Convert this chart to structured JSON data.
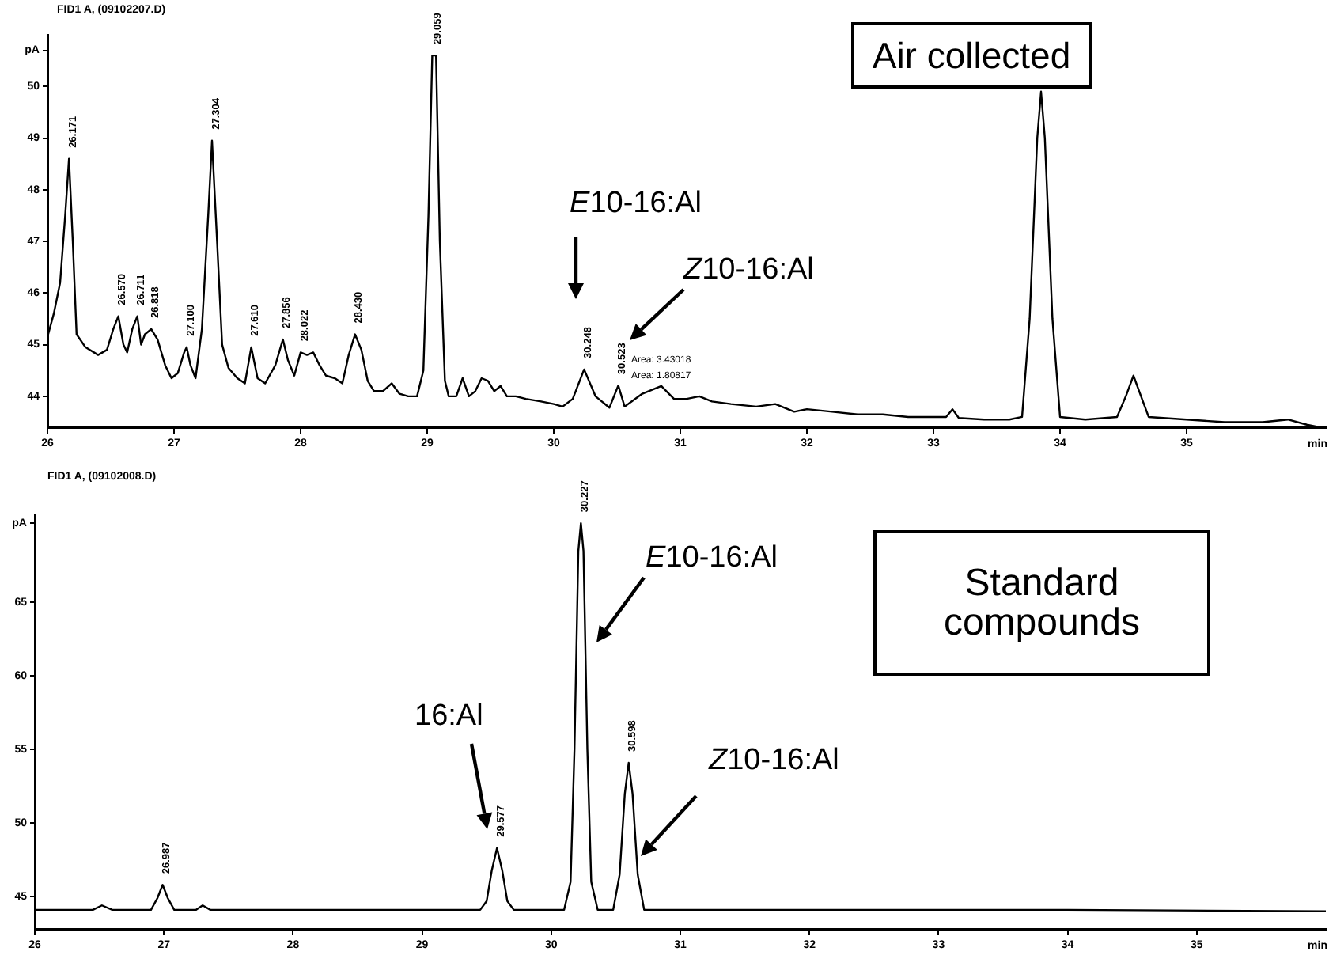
{
  "chart_data": [
    {
      "type": "line",
      "subtitle": "FID1 A, (09102207.D)",
      "xlabel": "min",
      "marker": "none",
      "x": [
        26.0,
        26.05,
        26.1,
        26.14,
        26.17,
        26.2,
        26.23,
        26.3,
        26.4,
        26.47,
        26.52,
        26.56,
        26.6,
        26.63,
        26.67,
        26.71,
        26.74,
        26.77,
        26.82,
        26.87,
        26.93,
        26.98,
        27.03,
        27.08,
        27.1,
        27.13,
        27.17,
        27.22,
        27.27,
        27.3,
        27.34,
        27.38,
        27.43,
        27.5,
        27.56,
        27.61,
        27.66,
        27.72,
        27.8,
        27.86,
        27.9,
        27.95,
        28.0,
        28.05,
        28.1,
        28.15,
        28.2,
        28.27,
        28.33,
        28.38,
        28.43,
        28.48,
        28.53,
        28.58,
        28.65,
        28.72,
        28.78,
        28.85,
        28.92,
        28.97,
        29.01,
        29.04,
        29.07,
        29.1,
        29.14,
        29.17,
        29.23,
        29.28,
        29.33,
        29.38,
        29.43,
        29.48,
        29.53,
        29.58,
        29.63,
        29.7,
        29.78,
        29.9,
        30.0,
        30.07,
        30.15,
        30.24,
        30.33,
        30.44,
        30.51,
        30.56,
        30.7,
        30.85,
        30.95,
        31.05,
        31.15,
        31.25,
        31.4,
        31.6,
        31.75,
        31.9,
        32.0,
        32.2,
        32.4,
        32.6,
        32.8,
        33.0,
        33.1,
        33.15,
        33.2,
        33.4,
        33.6,
        33.7,
        33.76,
        33.82,
        33.85,
        33.88,
        33.94,
        34.0,
        34.2,
        34.45,
        34.52,
        34.58,
        34.64,
        34.7,
        35.0,
        35.3,
        35.6,
        35.8,
        35.95,
        36.05
      ],
      "series": [
        {
          "color": "#000000",
          "values": [
            45.15,
            45.6,
            46.2,
            47.5,
            48.6,
            47.0,
            45.2,
            44.95,
            44.8,
            44.9,
            45.3,
            45.55,
            45.0,
            44.85,
            45.3,
            45.55,
            45.0,
            45.2,
            45.3,
            45.1,
            44.6,
            44.35,
            44.45,
            44.85,
            44.95,
            44.6,
            44.35,
            45.3,
            47.5,
            48.95,
            47.0,
            45.0,
            44.55,
            44.35,
            44.25,
            44.95,
            44.35,
            44.25,
            44.6,
            45.1,
            44.7,
            44.4,
            44.85,
            44.8,
            44.85,
            44.6,
            44.4,
            44.35,
            44.25,
            44.8,
            45.2,
            44.9,
            44.3,
            44.1,
            44.1,
            44.25,
            44.05,
            44.0,
            44.0,
            44.5,
            47.5,
            50.6,
            50.6,
            47.0,
            44.3,
            44.0,
            44.0,
            44.35,
            44.0,
            44.1,
            44.35,
            44.3,
            44.1,
            44.2,
            44.0,
            44.0,
            43.95,
            43.9,
            43.85,
            43.8,
            43.95,
            44.52,
            44.0,
            43.78,
            44.21,
            43.8,
            44.05,
            44.2,
            43.95,
            43.95,
            44.0,
            43.9,
            43.85,
            43.8,
            43.85,
            43.7,
            43.75,
            43.7,
            43.65,
            43.65,
            43.6,
            43.6,
            43.6,
            43.75,
            43.58,
            43.55,
            43.55,
            43.6,
            45.5,
            49.0,
            49.9,
            49.0,
            45.5,
            43.6,
            43.55,
            43.6,
            44.0,
            44.4,
            44.0,
            43.6,
            43.55,
            43.5,
            43.5,
            43.55,
            43.45,
            43.4
          ]
        }
      ],
      "xlim": [
        26.0,
        36.1
      ],
      "xticks": [
        26,
        27,
        28,
        29,
        30,
        31,
        32,
        33,
        34,
        35
      ],
      "ylim": [
        43.4,
        51
      ],
      "yticks": [
        44,
        45,
        46,
        47,
        48,
        49,
        50,
        {
          "value": 50.7,
          "label": "pA"
        }
      ],
      "annotations": [
        "E10-16:Al",
        "Z10-16:Al",
        "Area: 3.43018",
        "Area: 1.80817",
        "Air collected",
        {
          "text": "26.171",
          "x": 26.17,
          "y": 48.6
        },
        {
          "text": "26.570",
          "x": 26.56,
          "y": 45.55
        },
        {
          "text": "26.711",
          "x": 26.71,
          "y": 45.55
        },
        {
          "text": "26.818",
          "x": 26.82,
          "y": 45.3
        },
        {
          "text": "27.100",
          "x": 27.1,
          "y": 44.95
        },
        {
          "text": "27.304",
          "x": 27.3,
          "y": 48.95
        },
        {
          "text": "27.610",
          "x": 27.61,
          "y": 44.95
        },
        {
          "text": "27.856",
          "x": 27.86,
          "y": 45.1
        },
        {
          "text": "28.022",
          "x": 28.0,
          "y": 44.85
        },
        {
          "text": "28.430",
          "x": 28.43,
          "y": 45.2
        },
        {
          "text": "29.059",
          "x": 29.05,
          "y": 50.6
        },
        {
          "text": "30.248",
          "x": 30.24,
          "y": 44.52
        },
        {
          "text": "30.523",
          "x": 30.51,
          "y": 44.21
        }
      ]
    },
    {
      "type": "line",
      "subtitle": "FID1 A, (09102008.D)",
      "xlabel": "min",
      "marker": "none",
      "x": [
        26.0,
        26.45,
        26.52,
        26.6,
        26.9,
        26.95,
        26.99,
        27.03,
        27.08,
        27.25,
        27.3,
        27.36,
        29.45,
        29.5,
        29.54,
        29.58,
        29.62,
        29.66,
        29.71,
        30.1,
        30.15,
        30.18,
        30.21,
        30.23,
        30.25,
        30.28,
        30.31,
        30.36,
        30.48,
        30.53,
        30.57,
        30.6,
        30.63,
        30.67,
        30.72,
        32.0,
        34.0,
        36.0
      ],
      "series": [
        {
          "color": "#000000",
          "values": [
            44.1,
            44.1,
            44.4,
            44.1,
            44.1,
            44.9,
            45.8,
            44.9,
            44.1,
            44.1,
            44.4,
            44.1,
            44.1,
            44.7,
            46.8,
            48.3,
            46.8,
            44.7,
            44.1,
            44.1,
            46.0,
            55.0,
            68.5,
            70.4,
            68.5,
            55.0,
            46.0,
            44.1,
            44.1,
            46.5,
            52.0,
            54.1,
            52.0,
            46.5,
            44.1,
            44.1,
            44.1,
            44.0
          ]
        }
      ],
      "xlim": [
        26.0,
        36.0
      ],
      "xticks": [
        26,
        27,
        28,
        29,
        30,
        31,
        32,
        33,
        34,
        35
      ],
      "ylim": [
        42.8,
        71
      ],
      "yticks": [
        45,
        50,
        55,
        60,
        65,
        {
          "value": 70.4,
          "label": "pA"
        }
      ],
      "annotations": [
        "16:Al",
        "E10-16:Al",
        "Z10-16:Al",
        "Standard compounds",
        {
          "text": "26.987",
          "x": 26.99,
          "y": 45.8
        },
        {
          "text": "29.577",
          "x": 29.58,
          "y": 48.3
        },
        {
          "text": "30.227",
          "x": 30.23,
          "y": 70.4
        },
        {
          "text": "30.598",
          "x": 30.6,
          "y": 54.1
        }
      ]
    }
  ]
}
